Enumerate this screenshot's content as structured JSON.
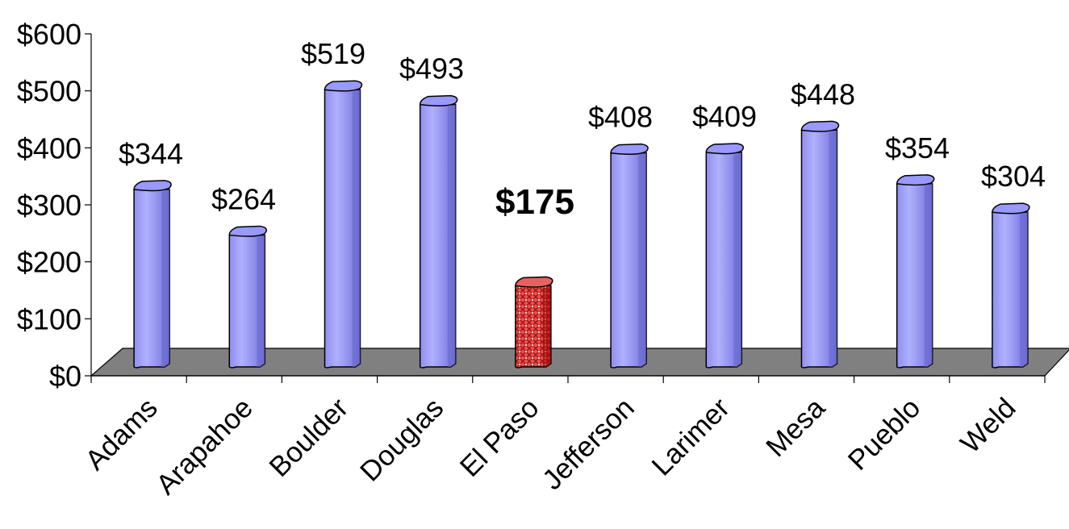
{
  "chart_data": {
    "type": "bar",
    "title": "",
    "xlabel": "",
    "ylabel": "",
    "categories": [
      "Adams",
      "Arapahoe",
      "Boulder",
      "Douglas",
      "El Paso",
      "Jefferson",
      "Larimer",
      "Mesa",
      "Pueblo",
      "Weld"
    ],
    "values": [
      344,
      264,
      519,
      493,
      175,
      408,
      409,
      448,
      354,
      304
    ],
    "data_labels": [
      "$344",
      "$264",
      "$519",
      "$493",
      "$175",
      "$408",
      "$409",
      "$448",
      "$354",
      "$304"
    ],
    "highlight_index": 4,
    "ylim": [
      0,
      600
    ],
    "y_ticks": [
      0,
      100,
      200,
      300,
      400,
      500,
      600
    ],
    "y_tick_labels": [
      "$0",
      "$100",
      "$200",
      "$300",
      "$400",
      "$500",
      "$600"
    ],
    "grid": false,
    "legend": "none",
    "colors": {
      "bar": "#9999ff",
      "bar_dark": "#6666cc",
      "bar_light": "#ccccff",
      "highlight": "#e04040",
      "highlight_dark": "#990000",
      "floor": "#808080",
      "outline": "#000000"
    }
  }
}
